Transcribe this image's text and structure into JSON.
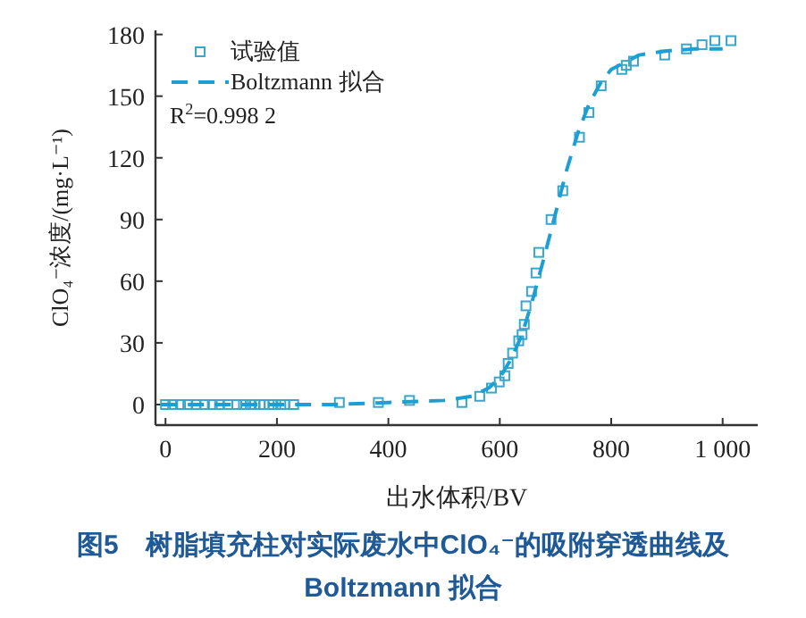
{
  "chart_data": {
    "type": "scatter",
    "title": "图5　树脂填充柱对实际废水中ClO₄⁻的吸附穿透曲线及Boltzmann 拟合",
    "xlabel": "出水体积/BV",
    "ylabel": "ClO₄⁻浓度/(mg·L⁻¹)",
    "annotations": [
      "R$^{2}$=0.998 2"
    ],
    "xlim": [
      -18,
      1063
    ],
    "ylim": [
      -10,
      182
    ],
    "xticks": [
      0,
      200,
      400,
      600,
      800,
      {
        "value": 1000,
        "label": "1 000"
      }
    ],
    "yticks": [
      0,
      30,
      60,
      90,
      120,
      150,
      180
    ],
    "grid": false,
    "legend": "top left",
    "series": [
      {
        "name": "试验值",
        "marker": "square",
        "color": "#3aa6c9",
        "x": [
          0,
          13,
          27,
          40,
          55,
          70,
          84,
          97,
          112,
          128,
          140,
          152,
          160,
          170,
          177,
          186,
          193,
          207,
          214,
          230,
          312,
          382,
          438,
          532,
          564,
          585,
          599,
          609,
          615,
          623,
          634,
          640,
          644,
          647,
          657,
          665,
          670,
          692,
          713,
          743,
          760,
          782,
          819,
          827,
          840,
          896,
          935,
          963,
          986,
          1015
        ],
        "values": [
          0,
          0,
          0,
          0,
          0,
          0,
          0,
          0,
          0,
          0,
          0,
          0,
          0,
          0,
          0,
          0,
          0,
          0,
          0,
          0,
          1,
          1,
          2,
          1,
          4,
          8,
          11,
          14,
          20,
          25,
          31,
          34,
          39,
          48,
          55,
          64,
          74,
          90,
          104,
          130,
          142,
          155,
          163,
          165,
          167,
          170,
          173,
          175,
          177,
          177
        ]
      },
      {
        "name": "Boltzmann 拟合",
        "type": "line",
        "line_style": "dashed",
        "color": "#1e9fd4",
        "x": [
          -8,
          100,
          200,
          300,
          400,
          500,
          550,
          580,
          600,
          620,
          640,
          660,
          680,
          700,
          720,
          740,
          760,
          780,
          800,
          850,
          900,
          950,
          1000
        ],
        "values": [
          0,
          0,
          0,
          0,
          1,
          2,
          4,
          8,
          13,
          22,
          34,
          52,
          72,
          93,
          114,
          132,
          146,
          156,
          163,
          170,
          172,
          173,
          173
        ]
      }
    ]
  }
}
